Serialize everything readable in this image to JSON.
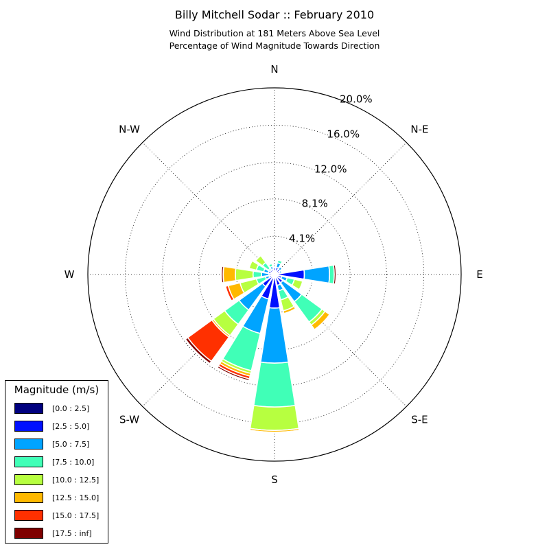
{
  "chart_data": {
    "type": "windrose",
    "title": "Billy Mitchell Sodar :: February 2010",
    "subtitle_lines": [
      "Wind Distribution at 181 Meters Above Sea Level",
      "Percentage of Wind Magnitude Towards Direction"
    ],
    "direction_labels": [
      "N",
      "N-E",
      "E",
      "S-E",
      "S",
      "S-W",
      "W",
      "N-W"
    ],
    "radial_ticks": [
      "4.1%",
      "8.1%",
      "12.0%",
      "16.0%",
      "20.0%"
    ],
    "radial_max": 20.0,
    "legend_title": "Magnitude (m/s)",
    "bins": [
      "[0.0 : 2.5]",
      "[2.5 : 5.0]",
      "[5.0 : 7.5]",
      "[7.5 : 10.0]",
      "[10.0 : 12.5]",
      "[12.5 : 15.0]",
      "[15.0 : 17.5]",
      "[17.5 : inf]"
    ],
    "colors": [
      "#00007f",
      "#0010ff",
      "#00a4ff",
      "#40ffb7",
      "#b7ff40",
      "#ffb900",
      "#ff3000",
      "#7f0000"
    ],
    "directions_deg": [
      0,
      22.5,
      45,
      67.5,
      90,
      112.5,
      135,
      157.5,
      180,
      202.5,
      225,
      247.5,
      270,
      292.5,
      315,
      337.5
    ],
    "values": [
      [
        0.4,
        0.3,
        0,
        0,
        0,
        0,
        0,
        0
      ],
      [
        0.4,
        0.4,
        0.5,
        0.3,
        0,
        0,
        0,
        0
      ],
      [
        0.3,
        0.4,
        0.3,
        0,
        0,
        0,
        0,
        0
      ],
      [
        0.3,
        0.3,
        0.2,
        0,
        0,
        0,
        0,
        0
      ],
      [
        0.4,
        2.8,
        2.7,
        0.5,
        0,
        0,
        0,
        0.2
      ],
      [
        0.3,
        0.5,
        0.6,
        0.8,
        0.9,
        0,
        0,
        0
      ],
      [
        0.4,
        0.7,
        2.5,
        2.7,
        0.4,
        0.6,
        0,
        0
      ],
      [
        0.3,
        0.9,
        0.6,
        1.0,
        1.2,
        0.3,
        0,
        0
      ],
      [
        0.3,
        3.3,
        5.9,
        4.7,
        2.5,
        0.2,
        0.1,
        0
      ],
      [
        0.4,
        2.3,
        3.8,
        4.1,
        0.3,
        0.3,
        0.3,
        0.2
      ],
      [
        0.4,
        1.2,
        3.1,
        1.9,
        1.5,
        0.2,
        3.2,
        0.3
      ],
      [
        0.3,
        0.3,
        0.4,
        1.0,
        1.8,
        1.3,
        0.3,
        0
      ],
      [
        0.3,
        0.3,
        0.8,
        0.9,
        1.9,
        1.3,
        0,
        0.2
      ],
      [
        0.3,
        0.4,
        0.5,
        0.8,
        0.8,
        0,
        0,
        0
      ],
      [
        0.3,
        0.3,
        0.2,
        0.8,
        0.9,
        0,
        0,
        0
      ],
      [
        0.3,
        0.3,
        0.3,
        0.3,
        0,
        0,
        0,
        0
      ]
    ],
    "grid": true,
    "legend_position": "bottom-left"
  }
}
